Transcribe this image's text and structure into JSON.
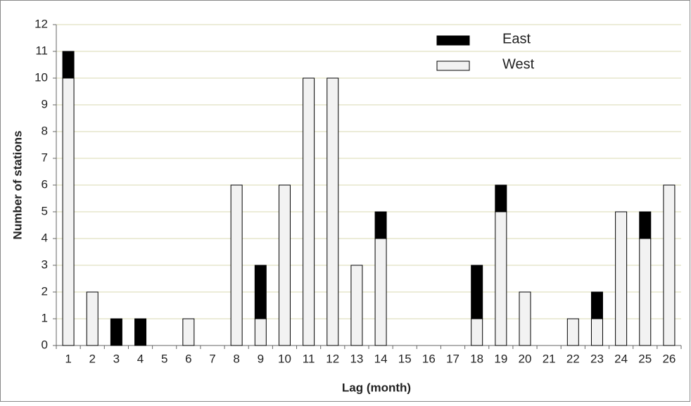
{
  "chart_data": {
    "type": "stacked_bar",
    "x_label": "Lag (month)",
    "y_label": "Number of stations",
    "categories": [
      "1",
      "2",
      "3",
      "4",
      "5",
      "6",
      "7",
      "8",
      "9",
      "10",
      "11",
      "12",
      "13",
      "14",
      "15",
      "16",
      "17",
      "18",
      "19",
      "20",
      "21",
      "22",
      "23",
      "24",
      "25",
      "26"
    ],
    "series": [
      {
        "name": "West",
        "color": "#f2f2f2",
        "values": [
          10,
          2,
          0,
          0,
          0,
          1,
          0,
          6,
          1,
          6,
          10,
          10,
          3,
          4,
          0,
          0,
          0,
          1,
          5,
          2,
          0,
          1,
          1,
          5,
          4,
          6
        ]
      },
      {
        "name": "East",
        "color": "#000000",
        "values": [
          1,
          0,
          1,
          1,
          0,
          0,
          0,
          0,
          2,
          0,
          0,
          0,
          0,
          1,
          0,
          0,
          0,
          2,
          1,
          0,
          0,
          0,
          1,
          0,
          1,
          0
        ]
      }
    ],
    "ylim": [
      0,
      12
    ],
    "yticks": [
      0,
      1,
      2,
      3,
      4,
      5,
      6,
      7,
      8,
      9,
      10,
      11,
      12
    ],
    "grid": true,
    "legend": "top-right"
  }
}
